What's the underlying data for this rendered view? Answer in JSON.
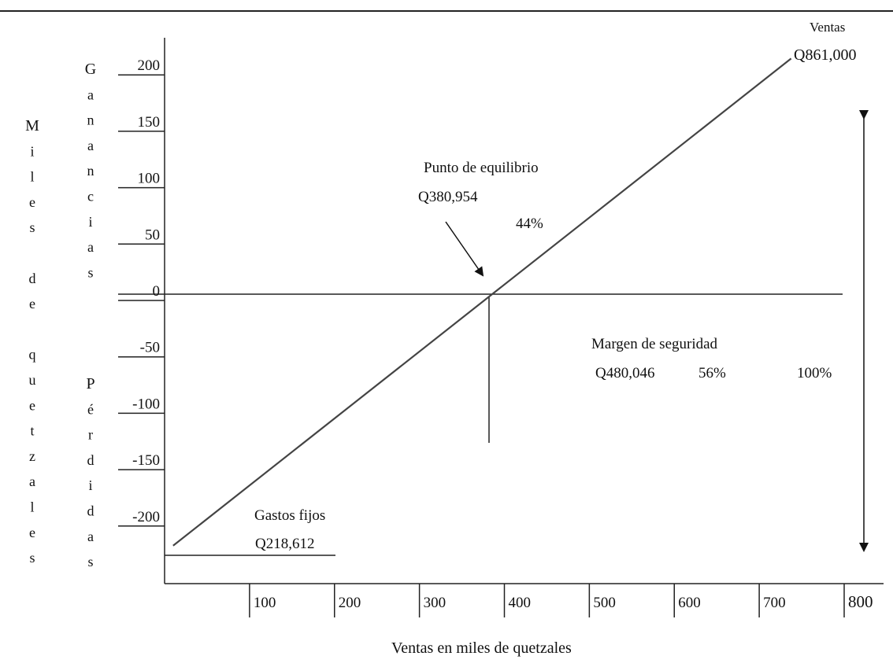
{
  "chart_data": {
    "type": "line",
    "title": "",
    "xlabel": "Ventas en miles de quetzales",
    "ylabel_outer": "Miles de quetzales",
    "ylabel_upper": "Ganancias",
    "ylabel_lower": "Pérdidas",
    "xlim": [
      0,
      800
    ],
    "ylim": [
      -250,
      220
    ],
    "x_ticks": [
      "100",
      "200",
      "300",
      "400",
      "500",
      "600",
      "700",
      "800"
    ],
    "x_tick_values": [
      100,
      200,
      300,
      400,
      500,
      600,
      700,
      800
    ],
    "y_ticks": [
      "200",
      "150",
      "100",
      "50",
      "0",
      "-50",
      "-100",
      "-150",
      "-200"
    ],
    "y_tick_values": [
      200,
      150,
      100,
      50,
      0,
      -50,
      -100,
      -150,
      -200
    ],
    "series": [
      {
        "name": "Ventas",
        "x": [
          10,
          735
        ],
        "y": [
          -222,
          208
        ]
      }
    ],
    "annotations": {
      "ventas_title": "Ventas",
      "ventas_value": "Q861,000",
      "equilibrio_title": "Punto de equilibrio",
      "equilibrio_value": "Q380,954",
      "equilibrio_pct": "44%",
      "margen_title": "Margen de seguridad",
      "margen_value": "Q480,046",
      "margen_pct": "56%",
      "total_pct": "100%",
      "gastos_title": "Gastos fijos",
      "gastos_value": "Q218,612"
    },
    "breakeven_x": 380.954,
    "fixed_costs_y": -230,
    "grid": false
  }
}
